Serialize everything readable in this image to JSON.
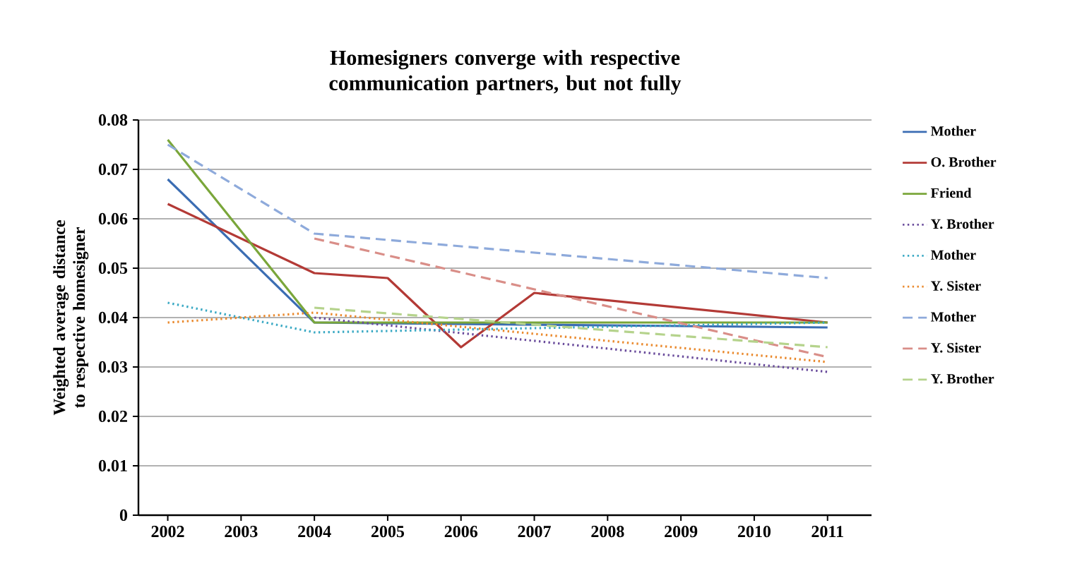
{
  "chart_data": {
    "type": "line",
    "title": "Homesigners converge with respective communication partners, but not fully",
    "ylabel": "Weighted average distance to respective homesigner",
    "xlim": [
      2001.6,
      2011.6
    ],
    "xticks": [
      2002,
      2003,
      2004,
      2005,
      2006,
      2007,
      2008,
      2009,
      2010,
      2011
    ],
    "ylim": [
      0,
      0.08
    ],
    "yticks": [
      0,
      0.01,
      0.02,
      0.03,
      0.04,
      0.05,
      0.06,
      0.07,
      0.08
    ],
    "grid": "y",
    "legend": "right",
    "marker": "none",
    "series": [
      {
        "name": "Mother",
        "color": "#3b6db3",
        "line_style": "solid",
        "x": [
          2002,
          2004,
          2011
        ],
        "values": [
          0.068,
          0.039,
          0.038
        ]
      },
      {
        "name": "O. Brother",
        "color": "#b33a36",
        "line_style": "solid",
        "x": [
          2002,
          2004,
          2005,
          2006,
          2007,
          2011
        ],
        "values": [
          0.063,
          0.049,
          0.048,
          0.034,
          0.045,
          0.039
        ]
      },
      {
        "name": "Friend",
        "color": "#7aa63a",
        "line_style": "solid",
        "x": [
          2002,
          2004,
          2011
        ],
        "values": [
          0.076,
          0.039,
          0.039
        ]
      },
      {
        "name": "Y. Brother",
        "color": "#6a4c9c",
        "line_style": "dotted",
        "x": [
          2004,
          2011
        ],
        "values": [
          0.04,
          0.029
        ]
      },
      {
        "name": "Mother",
        "color": "#3aa9c4",
        "line_style": "dotted",
        "x": [
          2002,
          2004,
          2011
        ],
        "values": [
          0.043,
          0.037,
          0.039
        ]
      },
      {
        "name": "Y. Sister",
        "color": "#ea8a2e",
        "line_style": "dotted",
        "x": [
          2002,
          2004,
          2011
        ],
        "values": [
          0.039,
          0.041,
          0.031
        ]
      },
      {
        "name": "Mother",
        "color": "#8eaadb",
        "line_style": "dashed",
        "x": [
          2002,
          2004,
          2011
        ],
        "values": [
          0.075,
          0.057,
          0.048
        ]
      },
      {
        "name": "Y. Sister",
        "color": "#d98e88",
        "line_style": "dashed",
        "x": [
          2004,
          2011
        ],
        "values": [
          0.056,
          0.032
        ]
      },
      {
        "name": "Y. Brother",
        "color": "#b5d38c",
        "line_style": "dashed",
        "x": [
          2004,
          2011
        ],
        "values": [
          0.042,
          0.034
        ]
      }
    ]
  }
}
